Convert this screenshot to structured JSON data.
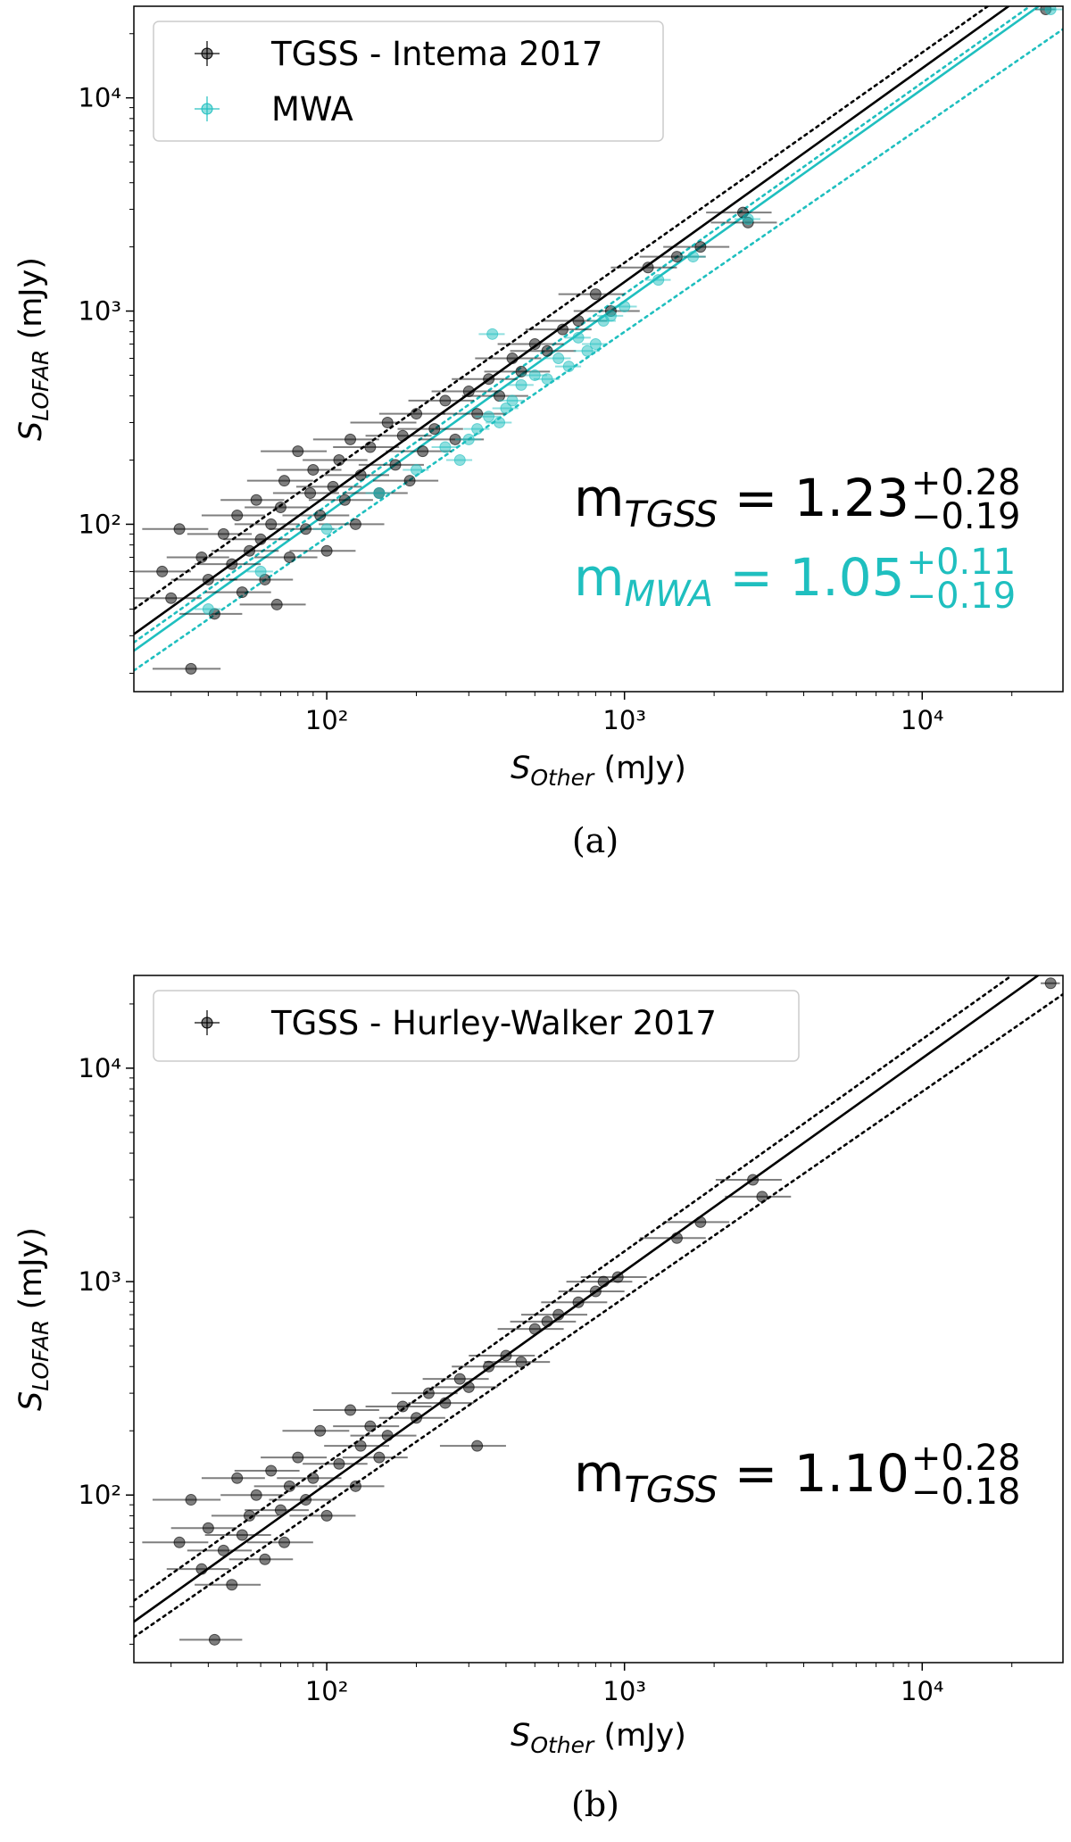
{
  "chart_data": [
    {
      "type": "scatter",
      "log": true,
      "legend": "upper left",
      "caption": "(a)",
      "xlabel": {
        "main": "S",
        "sub": "Other",
        "unit": " (mJy)"
      },
      "ylabel": {
        "main": "S",
        "sub": "LOFAR",
        "unit": " (mJy)"
      },
      "xlim": [
        22.5,
        29700
      ],
      "ylim": [
        16.4,
        26900
      ],
      "xticks": [
        {
          "value": 100,
          "label": "10²"
        },
        {
          "value": 1000,
          "label": "10³"
        },
        {
          "value": 10000,
          "label": "10⁴"
        }
      ],
      "yticks": [
        {
          "value": 100,
          "label": "10²"
        },
        {
          "value": 1000,
          "label": "10³"
        },
        {
          "value": 10000,
          "label": "10⁴"
        }
      ],
      "xminor": [
        30,
        40,
        50,
        60,
        70,
        80,
        90,
        200,
        300,
        400,
        500,
        600,
        700,
        800,
        900,
        2000,
        3000,
        4000,
        5000,
        6000,
        7000,
        8000,
        9000,
        20000
      ],
      "yminor": [
        20,
        30,
        40,
        50,
        60,
        70,
        80,
        90,
        200,
        300,
        400,
        500,
        600,
        700,
        800,
        900,
        2000,
        3000,
        4000,
        5000,
        6000,
        7000,
        8000,
        9000,
        20000
      ],
      "series": [
        {
          "name": "TGSS - Intema 2017",
          "color": "#000000",
          "x": [
            35,
            32,
            28,
            30,
            38,
            40,
            42,
            45,
            48,
            50,
            52,
            55,
            58,
            60,
            62,
            65,
            68,
            70,
            72,
            75,
            80,
            85,
            88,
            90,
            95,
            100,
            105,
            110,
            115,
            120,
            125,
            130,
            140,
            150,
            160,
            170,
            180,
            190,
            200,
            210,
            230,
            250,
            270,
            300,
            320,
            350,
            380,
            420,
            450,
            500,
            550,
            620,
            700,
            800,
            900,
            1200,
            1500,
            1800,
            2500,
            2600,
            26000
          ],
          "values": [
            21,
            95,
            60,
            45,
            70,
            55,
            38,
            90,
            65,
            110,
            48,
            75,
            130,
            85,
            55,
            100,
            42,
            120,
            160,
            70,
            220,
            95,
            140,
            180,
            110,
            75,
            150,
            200,
            130,
            250,
            100,
            170,
            230,
            140,
            300,
            190,
            260,
            160,
            330,
            220,
            280,
            380,
            250,
            420,
            330,
            480,
            400,
            600,
            520,
            700,
            650,
            820,
            900,
            1200,
            1000,
            1600,
            1800,
            2000,
            2900,
            2600,
            26000
          ],
          "xerr": [
            9,
            8,
            7,
            8,
            9,
            10,
            10,
            11,
            12,
            12,
            13,
            14,
            14,
            15,
            15,
            16,
            17,
            17,
            18,
            18,
            20,
            21,
            22,
            22,
            24,
            25,
            26,
            27,
            28,
            30,
            31,
            32,
            35,
            37,
            40,
            42,
            45,
            47,
            50,
            52,
            57,
            62,
            67,
            75,
            80,
            87,
            95,
            105,
            112,
            125,
            137,
            155,
            175,
            200,
            225,
            300,
            375,
            450,
            620,
            650,
            2000
          ]
        },
        {
          "name": "MWA",
          "color": "#1fbfbf",
          "x": [
            40,
            60,
            100,
            150,
            200,
            250,
            280,
            300,
            320,
            350,
            360,
            380,
            400,
            420,
            450,
            500,
            550,
            600,
            650,
            700,
            750,
            800,
            850,
            900,
            1000,
            1300,
            1700,
            2600,
            27000
          ],
          "values": [
            40,
            60,
            95,
            140,
            180,
            230,
            200,
            250,
            280,
            320,
            780,
            300,
            350,
            380,
            450,
            500,
            480,
            600,
            550,
            750,
            650,
            700,
            900,
            950,
            1050,
            1400,
            1800,
            2700,
            26000
          ],
          "xerr": [
            4,
            6,
            10,
            15,
            20,
            25,
            28,
            30,
            32,
            35,
            36,
            38,
            40,
            42,
            45,
            50,
            55,
            60,
            65,
            70,
            75,
            80,
            85,
            90,
            100,
            130,
            170,
            260,
            2700
          ]
        }
      ],
      "lines": [
        {
          "color": "#000000",
          "style": "solid",
          "x": [
            22.5,
            19500
          ],
          "y": [
            30.5,
            26900
          ]
        },
        {
          "color": "#000000",
          "style": "dotted",
          "x": [
            22.5,
            16600
          ],
          "y": [
            40,
            26900
          ]
        },
        {
          "color": "#1fbfbf",
          "style": "solid",
          "x": [
            22.5,
            24600
          ],
          "y": [
            25.5,
            26900
          ]
        },
        {
          "color": "#1fbfbf",
          "style": "dotted",
          "x": [
            22.5,
            23000
          ],
          "y": [
            27.9,
            26900
          ]
        },
        {
          "color": "#1fbfbf",
          "style": "dotted",
          "x": [
            22.5,
            29700
          ],
          "y": [
            20.6,
            21000
          ]
        }
      ],
      "annotations": [
        {
          "m": "m",
          "sub": "TGSS",
          "eq": " = 1.23",
          "sup": "+0.28",
          "inf": "−0.19",
          "color": "#000000"
        },
        {
          "m": "m",
          "sub": "MWA",
          "eq": " = 1.05",
          "sup": "+0.11",
          "inf": "−0.19",
          "color": "#1fbfbf"
        }
      ]
    },
    {
      "type": "scatter",
      "log": true,
      "legend": "upper left",
      "caption": "(b)",
      "xlabel": {
        "main": "S",
        "sub": "Other",
        "unit": " (mJy)"
      },
      "ylabel": {
        "main": "S",
        "sub": "LOFAR",
        "unit": " (mJy)"
      },
      "xlim": [
        22.5,
        29700
      ],
      "ylim": [
        16.4,
        27200
      ],
      "xticks": [
        {
          "value": 100,
          "label": "10²"
        },
        {
          "value": 1000,
          "label": "10³"
        },
        {
          "value": 10000,
          "label": "10⁴"
        }
      ],
      "yticks": [
        {
          "value": 100,
          "label": "10²"
        },
        {
          "value": 1000,
          "label": "10³"
        },
        {
          "value": 10000,
          "label": "10⁴"
        }
      ],
      "xminor": [
        30,
        40,
        50,
        60,
        70,
        80,
        90,
        200,
        300,
        400,
        500,
        600,
        700,
        800,
        900,
        2000,
        3000,
        4000,
        5000,
        6000,
        7000,
        8000,
        9000,
        20000
      ],
      "yminor": [
        20,
        30,
        40,
        50,
        60,
        70,
        80,
        90,
        200,
        300,
        400,
        500,
        600,
        700,
        800,
        900,
        2000,
        3000,
        4000,
        5000,
        6000,
        7000,
        8000,
        9000,
        20000
      ],
      "series": [
        {
          "name": "TGSS - Hurley-Walker 2017",
          "color": "#000000",
          "x": [
            42,
            35,
            32,
            38,
            40,
            45,
            48,
            50,
            52,
            55,
            58,
            62,
            65,
            70,
            72,
            75,
            80,
            85,
            90,
            95,
            100,
            110,
            120,
            125,
            130,
            140,
            150,
            160,
            180,
            200,
            220,
            250,
            280,
            300,
            320,
            350,
            400,
            450,
            500,
            550,
            600,
            700,
            800,
            850,
            950,
            1500,
            1800,
            2700,
            2900,
            27000
          ],
          "values": [
            21,
            95,
            60,
            45,
            70,
            55,
            38,
            120,
            65,
            80,
            100,
            50,
            130,
            85,
            60,
            110,
            150,
            95,
            120,
            200,
            80,
            140,
            250,
            110,
            170,
            210,
            150,
            190,
            260,
            230,
            300,
            270,
            350,
            320,
            170,
            400,
            450,
            420,
            600,
            650,
            700,
            800,
            900,
            1000,
            1050,
            1600,
            1900,
            3000,
            2500,
            25000
          ],
          "xerr": [
            10,
            9,
            8,
            9,
            10,
            11,
            12,
            12,
            13,
            14,
            14,
            15,
            16,
            17,
            18,
            18,
            20,
            21,
            22,
            24,
            25,
            27,
            30,
            31,
            32,
            35,
            37,
            40,
            45,
            50,
            55,
            62,
            70,
            75,
            80,
            87,
            100,
            112,
            125,
            137,
            150,
            175,
            200,
            212,
            237,
            375,
            450,
            675,
            725,
            2000
          ]
        }
      ],
      "lines": [
        {
          "color": "#000000",
          "style": "solid",
          "x": [
            22.5,
            24500
          ],
          "y": [
            25.5,
            27200
          ]
        },
        {
          "color": "#000000",
          "style": "dotted",
          "x": [
            22.5,
            20000
          ],
          "y": [
            32,
            27200
          ]
        },
        {
          "color": "#000000",
          "style": "dotted",
          "x": [
            22.5,
            29700
          ],
          "y": [
            21.6,
            22200
          ]
        }
      ],
      "annotations": [
        {
          "m": "m",
          "sub": "TGSS",
          "eq": " = 1.10",
          "sup": "+0.28",
          "inf": "−0.18",
          "color": "#000000"
        }
      ]
    }
  ]
}
